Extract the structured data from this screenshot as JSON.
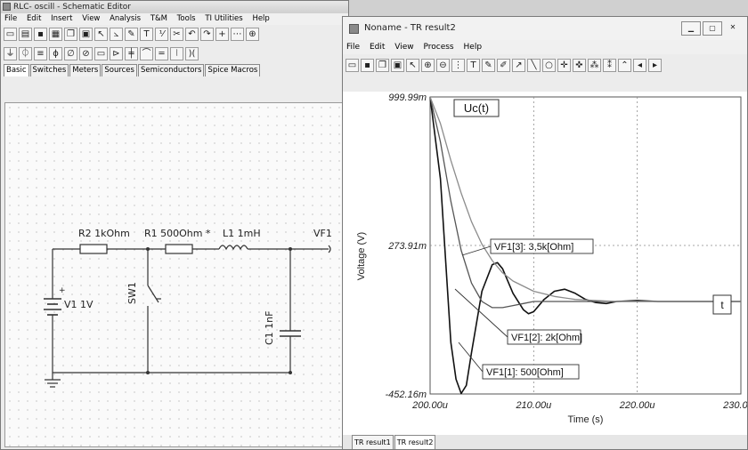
{
  "editor": {
    "title": "RLC- oscill - Schematic Editor",
    "menu": [
      "File",
      "Edit",
      "Insert",
      "View",
      "Analysis",
      "T&M",
      "Tools",
      "TI Utilities",
      "Help"
    ],
    "tabs": [
      "Basic",
      "Switches",
      "Meters",
      "Sources",
      "Semiconductors",
      "Spice Macros"
    ],
    "active_tab": "Basic"
  },
  "schematic": {
    "r2": "R2 1kOhm",
    "r1": "R1 500Ohm *",
    "l1": "L1 1mH",
    "vf1": "VF1",
    "v1": "V1 1V",
    "plus": "+",
    "sw1": "SW1",
    "c1": "C1 1nF"
  },
  "tr": {
    "title": "Noname - TR result2",
    "menu": [
      "File",
      "Edit",
      "View",
      "Process",
      "Help"
    ],
    "tabs": [
      "TR result1",
      "TR result2"
    ],
    "active_tab": "TR result2"
  },
  "colors": {
    "curve_500": "#111111",
    "curve_2k": "#555555",
    "curve_3k5": "#8c8c8c",
    "grid": "#8a8a8a"
  },
  "chart_data": {
    "type": "line",
    "title": "Uc(t)",
    "xlabel": "Time (s)",
    "ylabel": "Voltage (V)",
    "x_unit_label": "t",
    "x_tick_labels": [
      "200.00u",
      "210.00u",
      "220.00u",
      "230.00u"
    ],
    "y_tick_labels": [
      "999.99m",
      "273.91m",
      "-452.16m"
    ],
    "x_ticks": [
      200,
      210,
      220,
      230
    ],
    "y_ticks": [
      0.99999,
      0.27391,
      -0.45216
    ],
    "xlim": [
      200,
      230
    ],
    "ylim": [
      -0.45216,
      0.99999
    ],
    "grid": true,
    "series": [
      {
        "name": "VF1[1]: 500[Ohm]",
        "x": [
          200,
          201,
          202,
          202.5,
          203,
          203.5,
          204,
          205,
          206,
          206.5,
          207,
          208,
          209,
          209.5,
          210,
          211,
          212,
          213,
          214,
          215,
          216,
          217,
          218,
          220,
          222,
          226,
          230
        ],
        "y": [
          0.99999,
          0.6,
          -0.2,
          -0.38,
          -0.45,
          -0.41,
          -0.25,
          0.05,
          0.18,
          0.19,
          0.16,
          0.04,
          -0.04,
          -0.06,
          -0.05,
          0.01,
          0.05,
          0.06,
          0.04,
          0.01,
          -0.005,
          -0.01,
          0.0,
          0.005,
          0.0,
          0.0,
          0.0
        ]
      },
      {
        "name": "VF1[2]: 2k[Ohm]",
        "x": [
          200,
          201,
          202,
          203,
          204,
          205,
          206,
          207,
          208,
          209,
          210,
          211,
          212,
          213,
          214,
          216,
          218,
          222,
          230
        ],
        "y": [
          0.99999,
          0.78,
          0.49,
          0.25,
          0.09,
          -0.0,
          -0.03,
          -0.03,
          -0.02,
          -0.01,
          0.0,
          0.0,
          0.0,
          0.0,
          0.0,
          0.0,
          0.0,
          0.0,
          0.0
        ]
      },
      {
        "name": "VF1[3]: 3,5k[Ohm]",
        "x": [
          200,
          201,
          202,
          203,
          204,
          205,
          206,
          207,
          208,
          210,
          212,
          214,
          216,
          218,
          222,
          226,
          230
        ],
        "y": [
          0.99999,
          0.87,
          0.69,
          0.53,
          0.39,
          0.28,
          0.2,
          0.14,
          0.1,
          0.05,
          0.025,
          0.01,
          0.005,
          0.0,
          0.0,
          0.0,
          0.0
        ]
      }
    ]
  }
}
